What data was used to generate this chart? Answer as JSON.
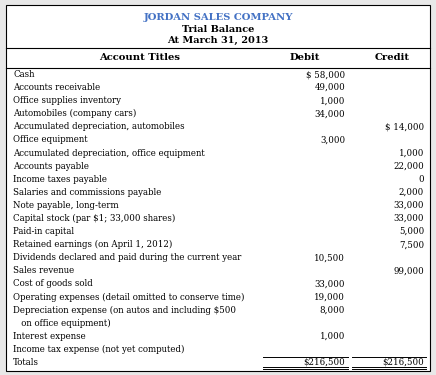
{
  "company": "JORDAN SALES COMPANY",
  "subtitle1": "Trial Balance",
  "subtitle2": "At March 31, 2013",
  "col_headers": [
    "Account Titles",
    "Debit",
    "Credit"
  ],
  "rows": [
    {
      "label": "Cash",
      "debit": "$ 58,000",
      "credit": "",
      "indent": 0
    },
    {
      "label": "Accounts receivable",
      "debit": "49,000",
      "credit": "",
      "indent": 0
    },
    {
      "label": "Office supplies inventory",
      "debit": "1,000",
      "credit": "",
      "indent": 0
    },
    {
      "label": "Automobiles (company cars)",
      "debit": "34,000",
      "credit": "",
      "indent": 0
    },
    {
      "label": "Accumulated depreciation, automobiles",
      "debit": "",
      "credit": "$ 14,000",
      "indent": 0
    },
    {
      "label": "Office equipment",
      "debit": "3,000",
      "credit": "",
      "indent": 0
    },
    {
      "label": "Accumulated depreciation, office equipment",
      "debit": "",
      "credit": "1,000",
      "indent": 0
    },
    {
      "label": "Accounts payable",
      "debit": "",
      "credit": "22,000",
      "indent": 0
    },
    {
      "label": "Income taxes payable",
      "debit": "",
      "credit": "0",
      "indent": 0
    },
    {
      "label": "Salaries and commissions payable",
      "debit": "",
      "credit": "2,000",
      "indent": 0
    },
    {
      "label": "Note payable, long-term",
      "debit": "",
      "credit": "33,000",
      "indent": 0
    },
    {
      "label": "Capital stock (par $1; 33,000 shares)",
      "debit": "",
      "credit": "33,000",
      "indent": 0
    },
    {
      "label": "Paid-in capital",
      "debit": "",
      "credit": "5,000",
      "indent": 0
    },
    {
      "label": "Retained earnings (on April 1, 2012)",
      "debit": "",
      "credit": "7,500",
      "indent": 0
    },
    {
      "label": "Dividends declared and paid during the current year",
      "debit": "10,500",
      "credit": "",
      "indent": 0
    },
    {
      "label": "Sales revenue",
      "debit": "",
      "credit": "99,000",
      "indent": 0
    },
    {
      "label": "Cost of goods sold",
      "debit": "33,000",
      "credit": "",
      "indent": 0
    },
    {
      "label": "Operating expenses (detail omitted to conserve time)",
      "debit": "19,000",
      "credit": "",
      "indent": 0
    },
    {
      "label": "Depreciation expense (on autos and including $500",
      "debit": "8,000",
      "credit": "",
      "indent": 0
    },
    {
      "label": "   on office equipment)",
      "debit": "",
      "credit": "",
      "indent": 0
    },
    {
      "label": "Interest expense",
      "debit": "1,000",
      "credit": "",
      "indent": 0
    },
    {
      "label": "Income tax expense (not yet computed)",
      "debit": "",
      "credit": "",
      "indent": 0
    },
    {
      "label": "Totals",
      "debit": "$216,500",
      "credit": "$216,500",
      "indent": 0,
      "is_total": true
    }
  ],
  "title_color": "#4472c4",
  "border_color": "#000000",
  "text_color": "#000000",
  "bg_color": "#ffffff",
  "outer_bg": "#e8e8e8"
}
